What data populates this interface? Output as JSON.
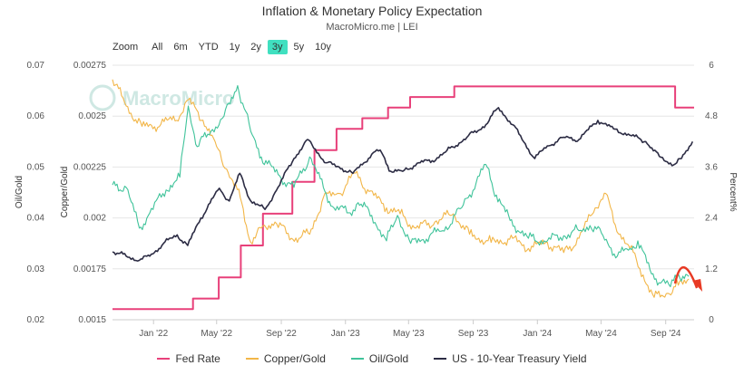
{
  "header": {
    "title": "Inflation & Monetary Policy Expectation",
    "source": "MacroMicro.me | LEI",
    "watermark": "MacroMicro"
  },
  "zoom": {
    "label": "Zoom",
    "options": [
      "All",
      "6m",
      "YTD",
      "1y",
      "2y",
      "3y",
      "5y",
      "10y"
    ],
    "selected": "3y"
  },
  "chart_data": {
    "type": "line",
    "title": "Inflation & Monetary Policy Expectation",
    "x_range": [
      "2021-10-15",
      "2024-10-25"
    ],
    "x_ticks": [
      "Jan '22",
      "May '22",
      "Sep '22",
      "Jan '23",
      "May '23",
      "Sep '23",
      "Jan '24",
      "May '24",
      "Sep '24"
    ],
    "axes": {
      "oil_gold": {
        "label": "Oil/Gold",
        "range": [
          0.02,
          0.07
        ],
        "ticks": [
          "0.02",
          "0.03",
          "0.04",
          "0.05",
          "0.06",
          "0.07"
        ]
      },
      "copper_gold": {
        "label": "Copper/Gold",
        "range": [
          0.0015,
          0.00275
        ],
        "ticks": [
          "0.0015",
          "0.00175",
          "0.002",
          "0.00225",
          "0.0025",
          "0.00275"
        ]
      },
      "percent": {
        "label": "Percent%",
        "range": [
          0,
          6
        ],
        "ticks": [
          "0",
          "1.2",
          "2.4",
          "3.6",
          "4.8",
          "6"
        ]
      }
    },
    "grid": "horizontal",
    "legend_position": "bottom",
    "series": [
      {
        "name": "Fed Rate",
        "axis": "percent",
        "color": "#e8407a",
        "step": true,
        "points": [
          [
            "2021-10-15",
            0.25
          ],
          [
            "2022-03-17",
            0.5
          ],
          [
            "2022-05-05",
            1.0
          ],
          [
            "2022-06-16",
            1.75
          ],
          [
            "2022-07-28",
            2.5
          ],
          [
            "2022-09-22",
            3.25
          ],
          [
            "2022-11-03",
            4.0
          ],
          [
            "2022-12-15",
            4.5
          ],
          [
            "2023-02-02",
            4.75
          ],
          [
            "2023-03-23",
            5.0
          ],
          [
            "2023-05-04",
            5.25
          ],
          [
            "2023-07-27",
            5.5
          ],
          [
            "2024-09-19",
            5.0
          ],
          [
            "2024-10-25",
            5.0
          ]
        ]
      },
      {
        "name": "Copper/Gold",
        "axis": "copper_gold",
        "color": "#f2b648",
        "points": [
          [
            "2021-10-15",
            0.00268
          ],
          [
            "2021-11-10",
            0.00255
          ],
          [
            "2021-12-10",
            0.00245
          ],
          [
            "2022-01-15",
            0.00246
          ],
          [
            "2022-02-20",
            0.0025
          ],
          [
            "2022-03-08",
            0.00258
          ],
          [
            "2022-04-05",
            0.00248
          ],
          [
            "2022-05-01",
            0.00235
          ],
          [
            "2022-05-20",
            0.00224
          ],
          [
            "2022-06-15",
            0.0021
          ],
          [
            "2022-07-05",
            0.00188
          ],
          [
            "2022-07-25",
            0.00195
          ],
          [
            "2022-08-20",
            0.00198
          ],
          [
            "2022-09-20",
            0.0019
          ],
          [
            "2022-10-25",
            0.00192
          ],
          [
            "2022-11-20",
            0.0021
          ],
          [
            "2022-12-20",
            0.00212
          ],
          [
            "2023-01-20",
            0.00222
          ],
          [
            "2023-02-15",
            0.00213
          ],
          [
            "2023-03-20",
            0.00205
          ],
          [
            "2023-04-15",
            0.00202
          ],
          [
            "2023-05-15",
            0.00195
          ],
          [
            "2023-06-20",
            0.00198
          ],
          [
            "2023-07-25",
            0.00202
          ],
          [
            "2023-08-25",
            0.00192
          ],
          [
            "2023-10-05",
            0.00188
          ],
          [
            "2023-11-15",
            0.0019
          ],
          [
            "2023-12-15",
            0.00185
          ],
          [
            "2024-01-20",
            0.00188
          ],
          [
            "2024-02-20",
            0.00183
          ],
          [
            "2024-03-20",
            0.0019
          ],
          [
            "2024-04-20",
            0.00205
          ],
          [
            "2024-05-10",
            0.00212
          ],
          [
            "2024-05-25",
            0.00198
          ],
          [
            "2024-06-25",
            0.00185
          ],
          [
            "2024-07-20",
            0.00172
          ],
          [
            "2024-08-10",
            0.00161
          ],
          [
            "2024-09-05",
            0.00163
          ],
          [
            "2024-09-25",
            0.00167
          ],
          [
            "2024-10-15",
            0.0017
          ]
        ]
      },
      {
        "name": "Oil/Gold",
        "axis": "oil_gold",
        "color": "#3fc39a",
        "points": [
          [
            "2021-10-15",
            0.0465
          ],
          [
            "2021-11-10",
            0.046
          ],
          [
            "2021-12-05",
            0.038
          ],
          [
            "2021-12-25",
            0.041
          ],
          [
            "2022-01-25",
            0.0455
          ],
          [
            "2022-02-20",
            0.048
          ],
          [
            "2022-03-08",
            0.062
          ],
          [
            "2022-03-25",
            0.054
          ],
          [
            "2022-04-20",
            0.057
          ],
          [
            "2022-05-15",
            0.06
          ],
          [
            "2022-06-10",
            0.066
          ],
          [
            "2022-07-05",
            0.057
          ],
          [
            "2022-07-25",
            0.052
          ],
          [
            "2022-08-20",
            0.049
          ],
          [
            "2022-09-25",
            0.046
          ],
          [
            "2022-10-25",
            0.052
          ],
          [
            "2022-11-20",
            0.046
          ],
          [
            "2022-12-10",
            0.042
          ],
          [
            "2023-01-10",
            0.041
          ],
          [
            "2023-01-25",
            0.043
          ],
          [
            "2023-02-20",
            0.0405
          ],
          [
            "2023-03-20",
            0.0355
          ],
          [
            "2023-04-10",
            0.0405
          ],
          [
            "2023-05-05",
            0.035
          ],
          [
            "2023-06-10",
            0.0365
          ],
          [
            "2023-07-05",
            0.0375
          ],
          [
            "2023-08-10",
            0.042
          ],
          [
            "2023-09-25",
            0.0505
          ],
          [
            "2023-10-15",
            0.0445
          ],
          [
            "2023-11-10",
            0.0395
          ],
          [
            "2023-12-15",
            0.036
          ],
          [
            "2024-01-20",
            0.0355
          ],
          [
            "2024-02-20",
            0.0365
          ],
          [
            "2024-03-20",
            0.0375
          ],
          [
            "2024-04-10",
            0.0385
          ],
          [
            "2024-05-05",
            0.0365
          ],
          [
            "2024-06-01",
            0.0325
          ],
          [
            "2024-06-25",
            0.034
          ],
          [
            "2024-07-10",
            0.0355
          ],
          [
            "2024-08-05",
            0.029
          ],
          [
            "2024-08-25",
            0.0275
          ],
          [
            "2024-09-10",
            0.0265
          ],
          [
            "2024-09-25",
            0.029
          ],
          [
            "2024-10-15",
            0.0285
          ]
        ]
      },
      {
        "name": "US - 10-Year Treasury Yield",
        "axis": "percent",
        "color": "#2c2c44",
        "points": [
          [
            "2021-10-15",
            1.6
          ],
          [
            "2021-11-10",
            1.5
          ],
          [
            "2021-12-05",
            1.4
          ],
          [
            "2021-12-25",
            1.5
          ],
          [
            "2022-01-20",
            1.8
          ],
          [
            "2022-02-15",
            2.0
          ],
          [
            "2022-03-07",
            1.75
          ],
          [
            "2022-04-01",
            2.4
          ],
          [
            "2022-05-06",
            3.1
          ],
          [
            "2022-05-25",
            2.8
          ],
          [
            "2022-06-14",
            3.45
          ],
          [
            "2022-07-05",
            2.8
          ],
          [
            "2022-08-01",
            2.6
          ],
          [
            "2022-08-20",
            3.0
          ],
          [
            "2022-09-25",
            3.8
          ],
          [
            "2022-10-21",
            4.25
          ],
          [
            "2022-11-25",
            3.7
          ],
          [
            "2022-12-20",
            3.6
          ],
          [
            "2023-01-15",
            3.45
          ],
          [
            "2023-02-20",
            3.9
          ],
          [
            "2023-03-08",
            4.0
          ],
          [
            "2023-03-28",
            3.5
          ],
          [
            "2023-04-20",
            3.5
          ],
          [
            "2023-05-20",
            3.7
          ],
          [
            "2023-06-15",
            3.75
          ],
          [
            "2023-07-10",
            3.95
          ],
          [
            "2023-08-20",
            4.3
          ],
          [
            "2023-09-25",
            4.6
          ],
          [
            "2023-10-19",
            5.0
          ],
          [
            "2023-11-15",
            4.6
          ],
          [
            "2023-12-27",
            3.8
          ],
          [
            "2024-01-20",
            4.1
          ],
          [
            "2024-02-20",
            4.3
          ],
          [
            "2024-03-20",
            4.25
          ],
          [
            "2024-04-25",
            4.7
          ],
          [
            "2024-05-25",
            4.5
          ],
          [
            "2024-06-25",
            4.35
          ],
          [
            "2024-07-25",
            4.2
          ],
          [
            "2024-08-20",
            3.85
          ],
          [
            "2024-09-16",
            3.65
          ],
          [
            "2024-10-01",
            3.8
          ],
          [
            "2024-10-22",
            4.2
          ]
        ]
      }
    ],
    "annotation": {
      "type": "arrow",
      "color": "#e83a24",
      "from": "2024-09-05",
      "to": "2024-10-20"
    }
  }
}
